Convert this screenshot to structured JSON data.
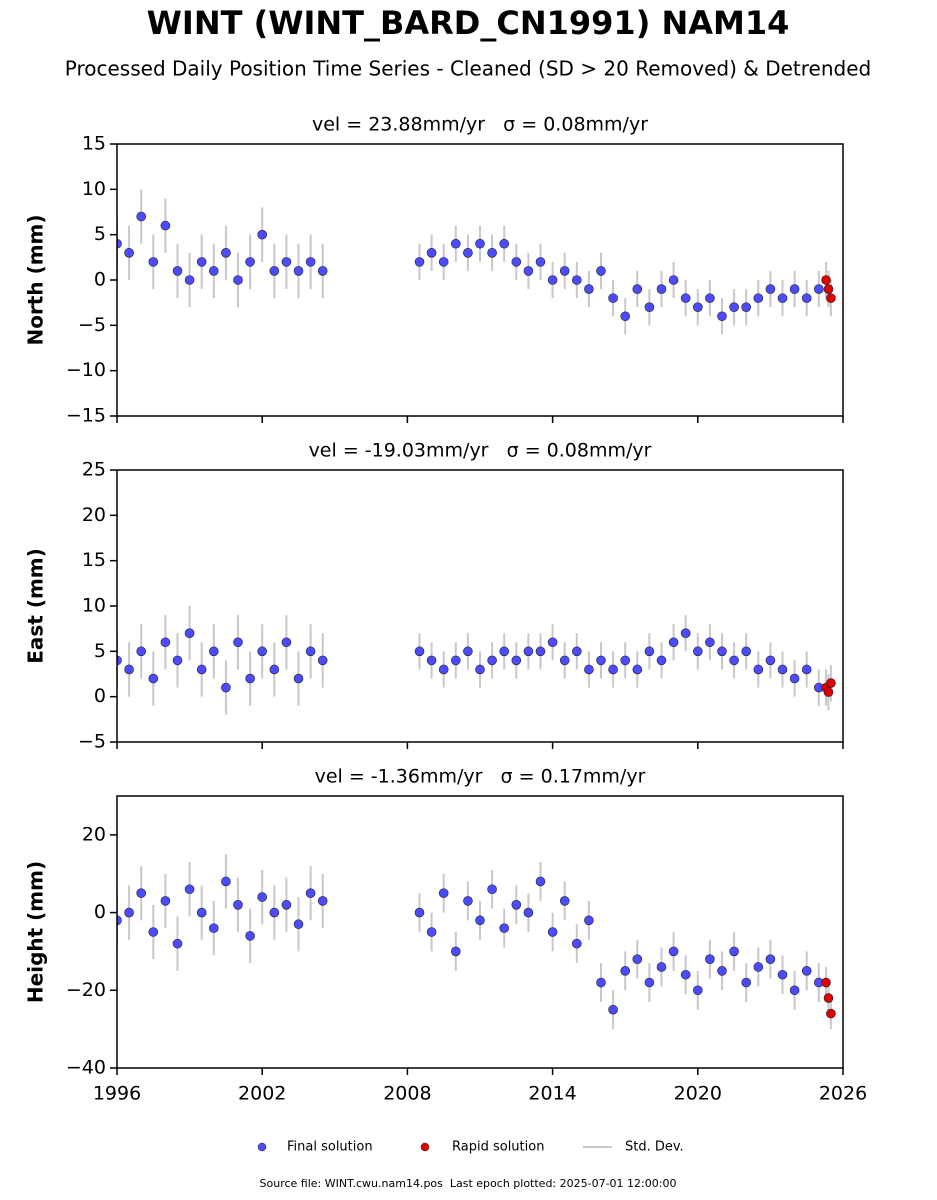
{
  "title": "WINT (WINT_BARD_CN1991) NAM14",
  "subtitle": "Processed Daily Position Time Series - Cleaned (SD > 20 Removed) & Detrended",
  "footer": "Source file: WINT.cwu.nam14.pos  Last epoch plotted: 2025-07-01 12:00:00",
  "chart_data": [
    {
      "type": "scatter",
      "title": "vel = 23.88mm/yr   σ = 0.08mm/yr",
      "y_label": "North (mm)",
      "xlim": [
        1996,
        2026
      ],
      "xticks": [
        1996,
        2002,
        2008,
        2014,
        2020,
        2026
      ],
      "show_xtick_labels": false,
      "ylim": [
        -15,
        15
      ],
      "yticks": [
        {
          "value": -15,
          "label": "−15"
        },
        {
          "value": -10,
          "label": "−10"
        },
        {
          "value": -5,
          "label": "−5"
        },
        0,
        5,
        10,
        15
      ],
      "error_label": "Std. Dev.",
      "error_color": "#c8c8c8",
      "series": [
        {
          "name": "Final solution",
          "color": "#4b4bff",
          "x": [
            1996.0,
            1996.5,
            1997.0,
            1997.5,
            1998.0,
            1998.5,
            1999.0,
            1999.5,
            2000.0,
            2000.5,
            2001.0,
            2001.5,
            2002.0,
            2002.5,
            2003.0,
            2003.5,
            2004.0,
            2004.5,
            2008.5,
            2009.0,
            2009.5,
            2010.0,
            2010.5,
            2011.0,
            2011.5,
            2012.0,
            2012.5,
            2013.0,
            2013.5,
            2014.0,
            2014.5,
            2015.0,
            2015.5,
            2016.0,
            2016.5,
            2017.0,
            2017.5,
            2018.0,
            2018.5,
            2019.0,
            2019.5,
            2020.0,
            2020.5,
            2021.0,
            2021.5,
            2022.0,
            2022.5,
            2023.0,
            2023.5,
            2024.0,
            2024.5,
            2025.0
          ],
          "values": [
            4,
            3,
            7,
            2,
            6,
            1,
            0,
            2,
            1,
            3,
            0,
            2,
            5,
            1,
            2,
            1,
            2,
            1,
            2,
            3,
            2,
            4,
            3,
            4,
            3,
            4,
            2,
            1,
            2,
            0,
            1,
            0,
            -1,
            1,
            -2,
            -4,
            -1,
            -3,
            -1,
            0,
            -2,
            -3,
            -2,
            -4,
            -3,
            -3,
            -2,
            -1,
            -2,
            -1,
            -2,
            -1
          ],
          "errors": [
            3,
            3,
            3,
            3,
            3,
            3,
            3,
            3,
            3,
            3,
            3,
            3,
            3,
            3,
            3,
            3,
            3,
            3,
            2,
            2,
            2,
            2,
            2,
            2,
            2,
            2,
            2,
            2,
            2,
            2,
            2,
            2,
            2,
            2,
            2,
            2,
            2,
            2,
            2,
            2,
            2,
            2,
            2,
            2,
            2,
            2,
            2,
            2,
            2,
            2,
            2,
            2
          ]
        },
        {
          "name": "Rapid solution",
          "color": "#e00000",
          "x": [
            2025.3,
            2025.4,
            2025.5
          ],
          "values": [
            0,
            -1,
            -2
          ],
          "errors": [
            2,
            2,
            2
          ]
        }
      ]
    },
    {
      "type": "scatter",
      "title": "vel = -19.03mm/yr   σ = 0.08mm/yr",
      "y_label": "East (mm)",
      "xlim": [
        1996,
        2026
      ],
      "xticks": [
        1996,
        2002,
        2008,
        2014,
        2020,
        2026
      ],
      "show_xtick_labels": false,
      "ylim": [
        -5,
        25
      ],
      "yticks": [
        {
          "value": -5,
          "label": "−5"
        },
        0,
        5,
        10,
        15,
        20,
        25
      ],
      "error_color": "#c8c8c8",
      "series": [
        {
          "name": "Final solution",
          "color": "#4b4bff",
          "x": [
            1996.0,
            1996.5,
            1997.0,
            1997.5,
            1998.0,
            1998.5,
            1999.0,
            1999.5,
            2000.0,
            2000.5,
            2001.0,
            2001.5,
            2002.0,
            2002.5,
            2003.0,
            2003.5,
            2004.0,
            2004.5,
            2008.5,
            2009.0,
            2009.5,
            2010.0,
            2010.5,
            2011.0,
            2011.5,
            2012.0,
            2012.5,
            2013.0,
            2013.5,
            2014.0,
            2014.5,
            2015.0,
            2015.5,
            2016.0,
            2016.5,
            2017.0,
            2017.5,
            2018.0,
            2018.5,
            2019.0,
            2019.5,
            2020.0,
            2020.5,
            2021.0,
            2021.5,
            2022.0,
            2022.5,
            2023.0,
            2023.5,
            2024.0,
            2024.5,
            2025.0
          ],
          "values": [
            4,
            3,
            5,
            2,
            6,
            4,
            7,
            3,
            5,
            1,
            6,
            2,
            5,
            3,
            6,
            2,
            5,
            4,
            5,
            4,
            3,
            4,
            5,
            3,
            4,
            5,
            4,
            5,
            5,
            6,
            4,
            5,
            3,
            4,
            3,
            4,
            3,
            5,
            4,
            6,
            7,
            5,
            6,
            5,
            4,
            5,
            3,
            4,
            3,
            2,
            3,
            1
          ],
          "errors": [
            3,
            3,
            3,
            3,
            3,
            3,
            3,
            3,
            3,
            3,
            3,
            3,
            3,
            3,
            3,
            3,
            3,
            3,
            2,
            2,
            2,
            2,
            2,
            2,
            2,
            2,
            2,
            2,
            2,
            2,
            2,
            2,
            2,
            2,
            2,
            2,
            2,
            2,
            2,
            2,
            2,
            2,
            2,
            2,
            2,
            2,
            2,
            2,
            2,
            2,
            2,
            2
          ]
        },
        {
          "name": "Rapid solution",
          "color": "#e00000",
          "x": [
            2025.3,
            2025.4,
            2025.5
          ],
          "values": [
            1,
            0.5,
            1.5
          ],
          "errors": [
            2,
            2,
            2
          ]
        }
      ]
    },
    {
      "type": "scatter",
      "title": "vel = -1.36mm/yr   σ = 0.17mm/yr",
      "y_label": "Height (mm)",
      "xlim": [
        1996,
        2026
      ],
      "xticks": [
        1996,
        2002,
        2008,
        2014,
        2020,
        2026
      ],
      "show_xtick_labels": true,
      "ylim": [
        -40,
        30
      ],
      "yticks": [
        {
          "value": -40,
          "label": "−40"
        },
        {
          "value": -20,
          "label": "−20"
        },
        0,
        20
      ],
      "error_color": "#c8c8c8",
      "series": [
        {
          "name": "Final solution",
          "color": "#4b4bff",
          "x": [
            1996.0,
            1996.5,
            1997.0,
            1997.5,
            1998.0,
            1998.5,
            1999.0,
            1999.5,
            2000.0,
            2000.5,
            2001.0,
            2001.5,
            2002.0,
            2002.5,
            2003.0,
            2003.5,
            2004.0,
            2004.5,
            2008.5,
            2009.0,
            2009.5,
            2010.0,
            2010.5,
            2011.0,
            2011.5,
            2012.0,
            2012.5,
            2013.0,
            2013.5,
            2014.0,
            2014.5,
            2015.0,
            2015.5,
            2016.0,
            2016.5,
            2017.0,
            2017.5,
            2018.0,
            2018.5,
            2019.0,
            2019.5,
            2020.0,
            2020.5,
            2021.0,
            2021.5,
            2022.0,
            2022.5,
            2023.0,
            2023.5,
            2024.0,
            2024.5,
            2025.0
          ],
          "values": [
            -2,
            0,
            5,
            -5,
            3,
            -8,
            6,
            0,
            -4,
            8,
            2,
            -6,
            4,
            0,
            2,
            -3,
            5,
            3,
            0,
            -5,
            5,
            -10,
            3,
            -2,
            6,
            -4,
            2,
            0,
            8,
            -5,
            3,
            -8,
            -2,
            -18,
            -25,
            -15,
            -12,
            -18,
            -14,
            -10,
            -16,
            -20,
            -12,
            -15,
            -10,
            -18,
            -14,
            -12,
            -16,
            -20,
            -15,
            -18
          ],
          "errors": [
            7,
            7,
            7,
            7,
            7,
            7,
            7,
            7,
            7,
            7,
            7,
            7,
            7,
            7,
            7,
            7,
            7,
            7,
            5,
            5,
            5,
            5,
            5,
            5,
            5,
            5,
            5,
            5,
            5,
            5,
            5,
            5,
            5,
            5,
            5,
            5,
            5,
            5,
            5,
            5,
            5,
            5,
            5,
            5,
            5,
            5,
            5,
            5,
            5,
            5,
            5,
            5
          ]
        },
        {
          "name": "Rapid solution",
          "color": "#e00000",
          "x": [
            2025.3,
            2025.4,
            2025.5
          ],
          "values": [
            -18,
            -22,
            -26
          ],
          "errors": [
            4,
            4,
            4
          ]
        }
      ]
    }
  ]
}
